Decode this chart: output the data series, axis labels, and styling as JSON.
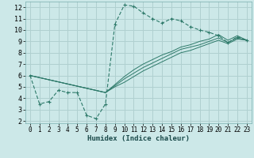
{
  "xlabel": "Humidex (Indice chaleur)",
  "bg_color": "#cce8e8",
  "grid_color": "#b0d0d0",
  "line_color": "#2e7a6a",
  "xlim": [
    -0.5,
    23.5
  ],
  "ylim": [
    1.8,
    12.5
  ],
  "xticks": [
    0,
    1,
    2,
    3,
    4,
    5,
    6,
    7,
    8,
    9,
    10,
    11,
    12,
    13,
    14,
    15,
    16,
    17,
    18,
    19,
    20,
    21,
    22,
    23
  ],
  "yticks": [
    2,
    3,
    4,
    5,
    6,
    7,
    8,
    9,
    10,
    11,
    12
  ],
  "main_line": {
    "x": [
      0,
      1,
      2,
      3,
      4,
      5,
      6,
      7,
      8,
      9,
      10,
      11,
      12,
      13,
      14,
      15,
      16,
      17,
      18,
      19,
      20,
      21,
      22,
      23
    ],
    "y": [
      6.0,
      3.5,
      3.7,
      4.7,
      4.5,
      4.5,
      2.5,
      2.2,
      3.5,
      10.5,
      12.2,
      12.1,
      11.5,
      11.0,
      10.6,
      11.0,
      10.8,
      10.3,
      10.0,
      9.8,
      9.5,
      8.9,
      9.4,
      9.1
    ]
  },
  "fan_lines": [
    {
      "x": [
        0,
        8,
        9,
        10,
        11,
        12,
        13,
        14,
        15,
        16,
        17,
        18,
        19,
        20,
        21,
        22,
        23
      ],
      "y": [
        6.0,
        4.5,
        5.0,
        5.4,
        5.9,
        6.4,
        6.8,
        7.2,
        7.6,
        8.0,
        8.2,
        8.5,
        8.8,
        9.1,
        8.8,
        9.2,
        9.1
      ]
    },
    {
      "x": [
        0,
        8,
        9,
        10,
        11,
        12,
        13,
        14,
        15,
        16,
        17,
        18,
        19,
        20,
        21,
        22,
        23
      ],
      "y": [
        6.0,
        4.5,
        5.1,
        5.7,
        6.2,
        6.7,
        7.1,
        7.5,
        7.9,
        8.3,
        8.5,
        8.7,
        9.0,
        9.3,
        8.9,
        9.3,
        9.1
      ]
    },
    {
      "x": [
        0,
        8,
        9,
        10,
        11,
        12,
        13,
        14,
        15,
        16,
        17,
        18,
        19,
        20,
        21,
        22,
        23
      ],
      "y": [
        6.0,
        4.5,
        5.2,
        5.9,
        6.5,
        7.0,
        7.4,
        7.8,
        8.1,
        8.5,
        8.7,
        9.0,
        9.2,
        9.6,
        9.1,
        9.5,
        9.1
      ]
    }
  ]
}
